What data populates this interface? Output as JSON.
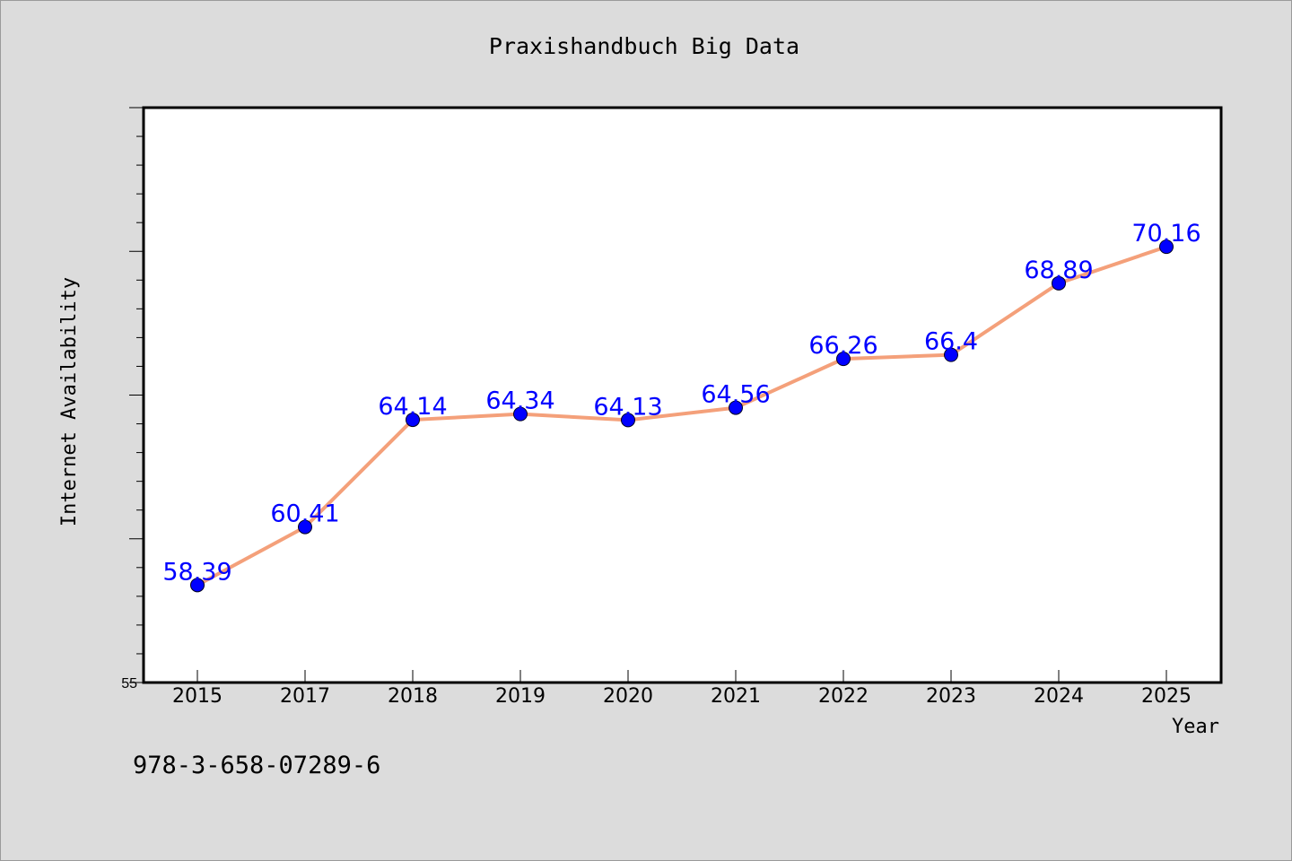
{
  "chart_data": {
    "type": "line",
    "title": "Praxishandbuch Big Data",
    "xlabel": "Year",
    "ylabel": "Internet Availability",
    "categories": [
      "2015",
      "2017",
      "2018",
      "2019",
      "2020",
      "2021",
      "2022",
      "2023",
      "2024",
      "2025"
    ],
    "series": [
      {
        "values": [
          58.39,
          60.41,
          64.14,
          64.34,
          64.13,
          64.56,
          66.26,
          66.4,
          68.89,
          70.16
        ],
        "labels": [
          "58.39",
          "60.41",
          "64.14",
          "64.34",
          "64.13",
          "64.56",
          "66.26",
          "66.4",
          "68.89",
          "70.16"
        ]
      }
    ],
    "ylim": [
      55,
      75
    ],
    "y_tick_labels": [
      "55"
    ],
    "grid": false,
    "legend": "none",
    "line_color": "#f4a07a",
    "marker_color": "#0000ff",
    "label_color": "#0000ff"
  },
  "footnote": "978-3-658-07289-6"
}
